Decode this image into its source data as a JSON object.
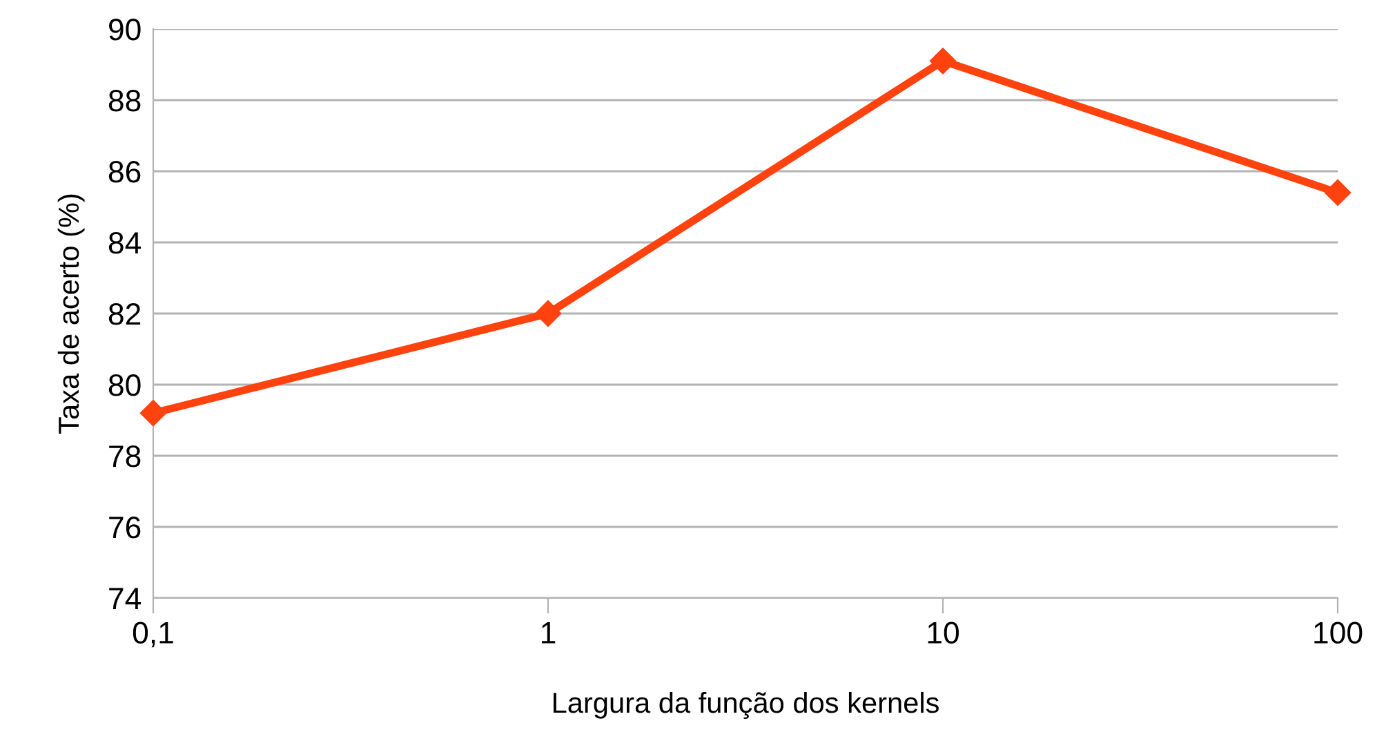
{
  "chart_data": {
    "type": "line",
    "xlabel": "Largura da função dos kernels",
    "ylabel": "Taxa de acerto (%)",
    "x": [
      0.1,
      1,
      10,
      100
    ],
    "series": [
      {
        "color": "#ff420e",
        "values": [
          79.2,
          82.0,
          89.1,
          85.4
        ]
      }
    ],
    "log": "x",
    "xlim": [
      0.1,
      100
    ],
    "xticks": [
      {
        "value": 0.1,
        "label": "0,1"
      },
      1,
      10,
      100
    ],
    "ylim": [
      74,
      90
    ],
    "yticks": [
      74,
      76,
      78,
      80,
      82,
      84,
      86,
      88,
      90
    ],
    "grid": "y",
    "marker": "diamond",
    "line_style": "solid",
    "legend": false
  }
}
